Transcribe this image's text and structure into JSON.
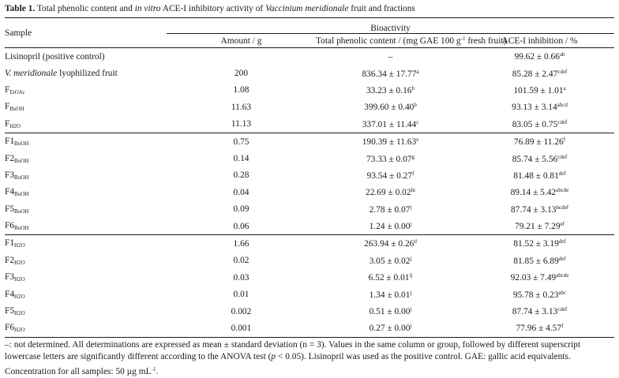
{
  "caption": {
    "label": "Table 1.",
    "text_a": " Total phenolic content and ",
    "text_b_italic": "in vitro",
    "text_c": " ACE-I inhibitory activity of ",
    "text_d_italic": "Vaccinium meridionale",
    "text_e": " fruit and fractions"
  },
  "header": {
    "sample": "Sample",
    "bioactivity": "Bioactivity",
    "amount": "Amount / g",
    "phenolic_pre": "Total phenolic content / (mg GAE 100 g",
    "phenolic_sup": "-1",
    "phenolic_post": " fresh fruit)",
    "ace": "ACE-I inhibition / %"
  },
  "rows": [
    {
      "name": "Lisinopril (positive control)",
      "name_italic": "",
      "sub": "",
      "amount": "",
      "phenolic": "–",
      "phenolic_sup": "",
      "ace": "99.62 ± 0.66",
      "ace_sup": "ab"
    },
    {
      "name": "",
      "name_italic": "V. meridionale",
      "name_rest": " lyophilized fruit",
      "sub": "",
      "amount": "200",
      "phenolic": "836.34 ± 17.77",
      "phenolic_sup": "a",
      "ace": "85.28 ± 2.47",
      "ace_sup": "cdef"
    },
    {
      "name": "F",
      "sub": "EtOAc",
      "amount": "1.08",
      "phenolic": "33.23 ± 0.16",
      "phenolic_sup": "h",
      "ace": "101.59 ± 1.01",
      "ace_sup": "a"
    },
    {
      "name": "F",
      "sub": "BuOH",
      "amount": "11.63",
      "phenolic": "399.60 ± 0.40",
      "phenolic_sup": "b",
      "ace": "93.13 ± 3.14",
      "ace_sup": "abcd"
    },
    {
      "name": "F",
      "sub": "H2O",
      "amount": "11.13",
      "phenolic": "337.01 ± 11.44",
      "phenolic_sup": "c",
      "ace": "83.05 ± 0.75",
      "ace_sup": "cdef"
    },
    {
      "name": "F1",
      "sub": "BuOH",
      "amount": "0.75",
      "phenolic": "190.39 ± 11.63",
      "phenolic_sup": "e",
      "ace": "76.89 ± 11.26",
      "ace_sup": "f"
    },
    {
      "name": "F2",
      "sub": "BuOH",
      "amount": "0.14",
      "phenolic": "73.33 ± 0.07",
      "phenolic_sup": "g",
      "ace": "85.74 ± 5.56",
      "ace_sup": "cdef"
    },
    {
      "name": "F3",
      "sub": "BuOH",
      "amount": "0.28",
      "phenolic": "93.54 ± 0.27",
      "phenolic_sup": "f",
      "ace": "81.48 ± 0.81",
      "ace_sup": "def"
    },
    {
      "name": "F4",
      "sub": "BuOH",
      "amount": "0.04",
      "phenolic": "22.69 ± 0.02",
      "phenolic_sup": "hi",
      "ace": "89.14 ± 5.42",
      "ace_sup": "abcde"
    },
    {
      "name": "F5",
      "sub": "BuOH",
      "amount": "0.09",
      "phenolic": "2.78 ± 0.07",
      "phenolic_sup": "j",
      "ace": "87.74 ± 3.13",
      "ace_sup": "bcdef"
    },
    {
      "name": "F6",
      "sub": "BuOH",
      "amount": "0.06",
      "phenolic": "1.24 ± 0.00",
      "phenolic_sup": "j",
      "ace": "79.21 ± 7.29",
      "ace_sup": "ef"
    },
    {
      "name": "F1",
      "sub": "H2O",
      "amount": "1.66",
      "phenolic": "263.94 ± 0.26",
      "phenolic_sup": "d",
      "ace": "81.52 ± 3.19",
      "ace_sup": "def"
    },
    {
      "name": "F2",
      "sub": "H2O",
      "amount": "0.02",
      "phenolic": "3.05 ± 0.02",
      "phenolic_sup": "j",
      "ace": "81.85 ± 6.89",
      "ace_sup": "def"
    },
    {
      "name": "F3",
      "sub": "H2O",
      "amount": "0.03",
      "phenolic": "6.52 ± 0.01",
      "phenolic_sup": "ij",
      "ace": "92.03 ± 7.49",
      "ace_sup": "abcde"
    },
    {
      "name": "F4",
      "sub": "H2O",
      "amount": "0.01",
      "phenolic": "1.34 ± 0.01",
      "phenolic_sup": "j",
      "ace": "95.78 ± 0.23",
      "ace_sup": "abc"
    },
    {
      "name": "F5",
      "sub": "H2O",
      "amount": "0.002",
      "phenolic": "0.51 ± 0.00",
      "phenolic_sup": "j",
      "ace": "87.74 ± 3.13",
      "ace_sup": "cdef"
    },
    {
      "name": "F6",
      "sub": "H2O",
      "amount": "0.001",
      "phenolic": "0.27 ± 0.00",
      "phenolic_sup": "j",
      "ace": "77.96 ± 4.57",
      "ace_sup": "f"
    }
  ],
  "footnote": {
    "line1_a": "–: not determined. All determinations are expressed as mean ± standard deviation (n = 3). Values in the same column or group, followed by different superscript",
    "line2_a": "lowercase letters are significantly different according to the ANOVA test (",
    "line2_p": "p",
    "line2_b": " < 0.05). Lisinopril was used as the positive control. GAE: gallic acid equivalents.",
    "line3_a": "Concentration for all samples: 50 µg mL",
    "line3_sup": "-1",
    "line3_b": "."
  }
}
